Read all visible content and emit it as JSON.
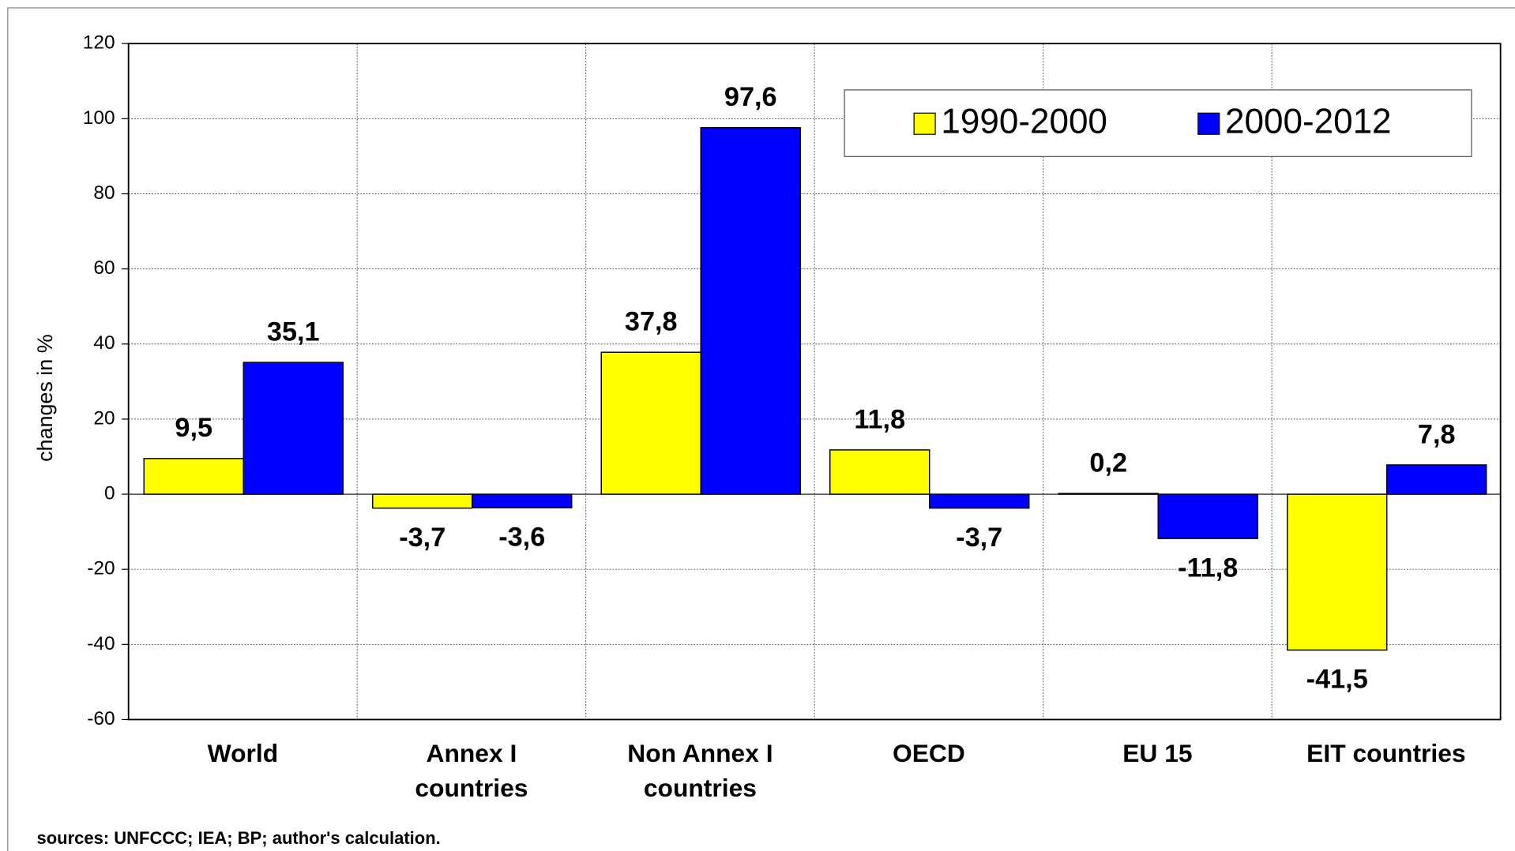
{
  "chart_data": {
    "type": "bar",
    "y_label": "changes in %",
    "source": "sources: UNFCCC; IEA; BP; author's calculation.",
    "categories": [
      [
        "World"
      ],
      [
        "Annex I",
        "countries"
      ],
      [
        "Non Annex I",
        "countries"
      ],
      [
        "OECD"
      ],
      [
        "EU 15"
      ],
      [
        "EIT countries"
      ]
    ],
    "series": [
      {
        "name": "1990-2000",
        "color": "#ffff00",
        "values": [
          9.5,
          -3.7,
          37.8,
          11.8,
          0.2,
          -41.5
        ],
        "value_labels": [
          "9,5",
          "-3,7",
          "37,8",
          "11,8",
          "0,2",
          "-41,5"
        ]
      },
      {
        "name": "2000-2012",
        "color": "#0000ff",
        "values": [
          35.1,
          -3.6,
          97.6,
          -3.7,
          -11.8,
          7.8
        ],
        "value_labels": [
          "35,1",
          "-3,6",
          "97,6",
          "-3,7",
          "-11,8",
          "7,8"
        ]
      }
    ],
    "ylim": [
      -60,
      120
    ],
    "yticks": [
      -60,
      -40,
      -20,
      0,
      20,
      40,
      60,
      80,
      100,
      120
    ],
    "grid": true
  }
}
